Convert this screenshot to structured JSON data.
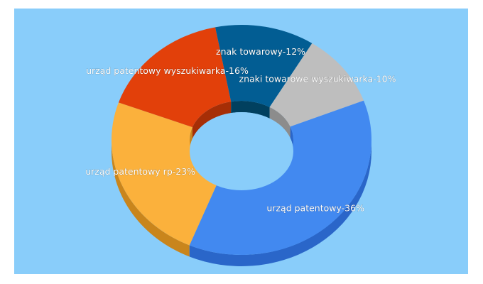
{
  "chart_data": {
    "type": "pie",
    "variant": "3d-donut",
    "background": "#89cdfa",
    "slices": [
      {
        "label": "urząd patentowy",
        "value": 36,
        "color": "#4289f0",
        "side": "#2a66c9",
        "display": "urząd patentowy-36%"
      },
      {
        "label": "urząd patentowy rp",
        "value": 23,
        "color": "#fbb13c",
        "side": "#c9851c",
        "display": "urząd patentowy rp-23%"
      },
      {
        "label": "urząd patentowy wyszukiwarka",
        "value": 16,
        "color": "#e2400a",
        "side": "#a62e06",
        "display": "urząd patentowy wyszukiwarka-16%"
      },
      {
        "label": "znak towarowy",
        "value": 12,
        "color": "#025d93",
        "side": "#01405f",
        "display": "znak towarowy-12%"
      },
      {
        "label": "znaki towarowe wyszukiwarka",
        "value": 10,
        "color": "#bebebe",
        "side": "#8c8c8c",
        "display": "znaki towarowe wyszukiwarka-10%"
      }
    ]
  }
}
